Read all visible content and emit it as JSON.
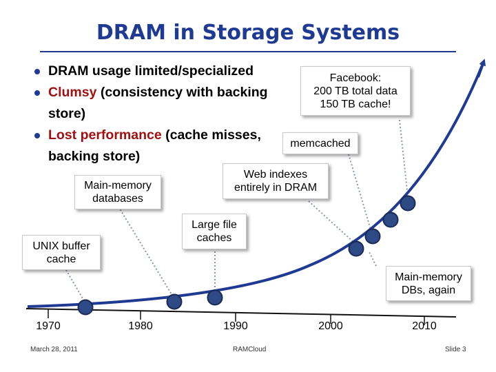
{
  "title": "DRAM in Storage Systems",
  "bullets": [
    {
      "parts": [
        {
          "text": "DRAM usage limited/specialized",
          "highlight": false
        }
      ]
    },
    {
      "parts": [
        {
          "text": "Clumsy",
          "highlight": true
        },
        {
          "text": " (consistency with backing store)",
          "highlight": false
        }
      ]
    },
    {
      "parts": [
        {
          "text": "Lost performance",
          "highlight": true
        },
        {
          "text": " (cache misses, backing store)",
          "highlight": false
        }
      ]
    }
  ],
  "callouts": {
    "unix_buffer_cache": "UNIX buffer cache",
    "main_memory_databases": "Main-memory databases",
    "large_file_caches": "Large file caches",
    "web_indexes": "Web indexes entirely in DRAM",
    "memcached": "memcached",
    "facebook": {
      "line1": "Facebook:",
      "line2": "200 TB total data",
      "line3": "150 TB cache!"
    },
    "main_memory_dbs_again": "Main-memory DBs, again"
  },
  "timeline": {
    "years": [
      "1970",
      "1980",
      "1990",
      "2000",
      "2010"
    ]
  },
  "footer": {
    "date": "March 28, 2011",
    "center": "RAMCloud",
    "slide": "Slide 3"
  },
  "colors": {
    "title": "#1f3a93",
    "highlight": "#a01010",
    "curve": "#1f3a93",
    "node": "#2d4a86"
  }
}
